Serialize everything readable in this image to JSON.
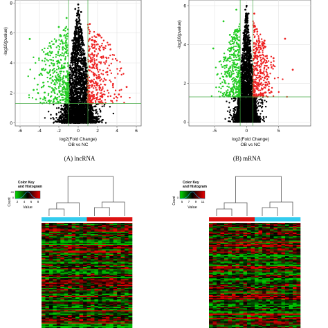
{
  "chart_data": [
    {
      "type": "scatter",
      "subtype": "volcano",
      "caption": "(A) lncRNA",
      "xlabel": "log2(Fold Change)",
      "xsublabel": "OB vs NC",
      "ylabel": "-log10(pvalue)",
      "xlim": [
        -6.5,
        6.5
      ],
      "ylim": [
        -0.2,
        8.2
      ],
      "xticks": [
        -6,
        -4,
        -2,
        0,
        2,
        4,
        6
      ],
      "yticks": [
        0,
        2,
        4,
        6,
        8
      ],
      "grid": true,
      "threshold_lines": {
        "x": [
          -1,
          1
        ],
        "y": 1.3
      },
      "series": [
        {
          "color": "#000000",
          "x": [
            -0.9,
            -0.6,
            -0.3,
            0.0,
            0.3,
            0.6,
            0.9
          ],
          "y": [
            3.2,
            5.5,
            7.6,
            7.9,
            7.4,
            5.2,
            3.1
          ]
        },
        {
          "color": "#22cc22",
          "x": [
            -5.0,
            -4.6,
            -4.0,
            -3.2,
            -2.6,
            -2.0,
            -1.6,
            -1.2
          ],
          "y": [
            5.6,
            2.2,
            3.2,
            4.6,
            2.8,
            6.4,
            5.3,
            7.0
          ]
        },
        {
          "color": "#ee2222",
          "x": [
            1.2,
            1.6,
            2.0,
            2.4,
            3.0,
            3.6,
            4.2,
            5.0
          ],
          "y": [
            6.6,
            5.0,
            5.9,
            4.4,
            3.4,
            2.6,
            1.9,
            2.4
          ]
        }
      ]
    },
    {
      "type": "scatter",
      "subtype": "volcano",
      "caption": "(B) mRNA",
      "xlabel": "log2(Fold Change)",
      "xsublabel": "OB vs NC",
      "ylabel": "-log10(pvalue)",
      "xlim": [
        -9,
        10
      ],
      "ylim": [
        -0.2,
        6.3
      ],
      "xticks": [
        -5,
        0,
        5
      ],
      "yticks": [
        0,
        2,
        4,
        6
      ],
      "grid": true,
      "threshold_lines": {
        "x": [
          -1,
          1
        ],
        "y": 1.3
      },
      "series": [
        {
          "color": "#000000",
          "x": [
            -0.8,
            -0.5,
            -0.2,
            0.0,
            0.3,
            0.6,
            0.9
          ],
          "y": [
            2.8,
            4.6,
            5.8,
            6.0,
            5.6,
            4.2,
            2.6
          ]
        },
        {
          "color": "#22cc22",
          "x": [
            -5.2,
            -3.6,
            -3.0,
            -2.6,
            -2.0,
            -1.6,
            -1.2
          ],
          "y": [
            3.8,
            5.2,
            2.6,
            4.5,
            3.0,
            5.8,
            4.7
          ]
        },
        {
          "color": "#ee2222",
          "x": [
            1.2,
            1.6,
            2.0,
            2.8,
            3.4,
            4.2,
            6.0,
            7.2
          ],
          "y": [
            5.6,
            4.8,
            3.6,
            4.2,
            2.8,
            3.3,
            4.3,
            2.7
          ]
        }
      ]
    },
    {
      "type": "heatmap",
      "color_key": {
        "title": "Color Key\nand Histogram",
        "ylabel": "Count",
        "xlabel": "Value",
        "ticks": [
          "2",
          "4",
          "6",
          "8"
        ],
        "yticks": [
          "0",
          "20"
        ],
        "colors": [
          "#00dd00",
          "#000000",
          "#ee0000"
        ]
      },
      "column_groups": [
        "#33ccee",
        "#33ccee",
        "#33ccee",
        "#dd1111",
        "#dd1111",
        "#dd1111"
      ],
      "colors": [
        "#00dd00",
        "#000000",
        "#ee0000"
      ]
    },
    {
      "type": "heatmap",
      "color_key": {
        "title": "Color Key\nand Histogram",
        "ylabel": "Count",
        "xlabel": "Value",
        "ticks": [
          "5",
          "7",
          "9",
          "11"
        ],
        "yticks": [
          "0"
        ],
        "colors": [
          "#00dd00",
          "#000000",
          "#ee0000"
        ]
      },
      "column_groups": [
        "#dd1111",
        "#dd1111",
        "#dd1111",
        "#33ccee",
        "#33ccee",
        "#33ccee"
      ],
      "colors": [
        "#00dd00",
        "#000000",
        "#ee0000"
      ]
    }
  ]
}
